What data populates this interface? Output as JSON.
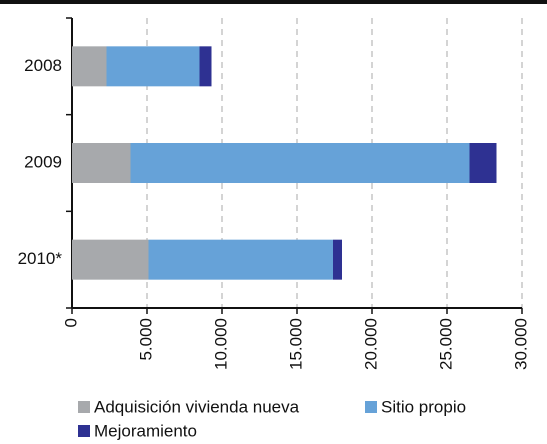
{
  "chart_data": {
    "type": "hbar-stacked",
    "categories": [
      "2008",
      "2009",
      "2010*"
    ],
    "series": [
      {
        "name": "Adquisición vivienda nueva",
        "color": "#a7a9ac",
        "values": [
          2300,
          3900,
          5100
        ]
      },
      {
        "name": "Sitio propio",
        "color": "#66a2d8",
        "values": [
          6200,
          22600,
          12300
        ]
      },
      {
        "name": "Mejoramiento",
        "color": "#2e3192",
        "values": [
          800,
          1800,
          600
        ]
      }
    ],
    "xlim": [
      0,
      30000
    ],
    "xticks": [
      0,
      {
        "value": 5000,
        "label": "5.000"
      },
      {
        "value": 10000,
        "label": "10.000"
      },
      {
        "value": 15000,
        "label": "15.000"
      },
      {
        "value": 20000,
        "label": "20.000"
      },
      {
        "value": 25000,
        "label": "25.000"
      },
      {
        "value": 30000,
        "label": "30.000"
      }
    ],
    "grid": true
  }
}
